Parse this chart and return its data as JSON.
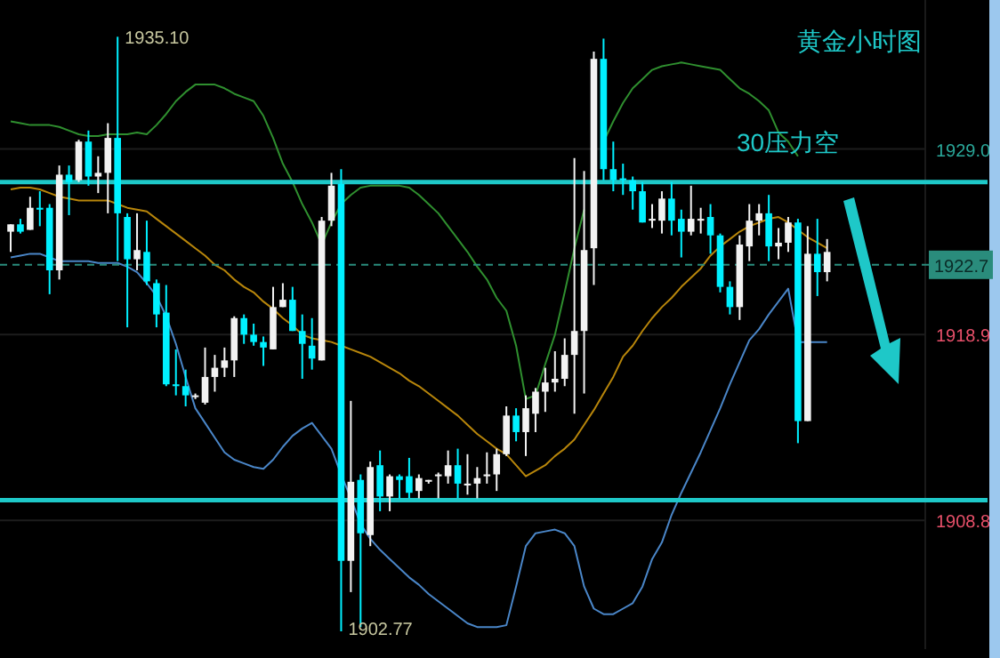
{
  "chart_data": {
    "type": "candlestick",
    "title": "黄金小时图",
    "categories": [
      null,
      null,
      null,
      null,
      null,
      null,
      null,
      null,
      null,
      null,
      null,
      null,
      null,
      null,
      null,
      null,
      null,
      null,
      null,
      null,
      null,
      null,
      null,
      null,
      null,
      null,
      null,
      null,
      null,
      null,
      null,
      null,
      null,
      null,
      null,
      null,
      null,
      null,
      null,
      null,
      null,
      null,
      null,
      null,
      null,
      null,
      null,
      null,
      null,
      null,
      null,
      null,
      null,
      null,
      null,
      null,
      null,
      null,
      null,
      null,
      null,
      null,
      null,
      null,
      null,
      null,
      null,
      null,
      null,
      null,
      null,
      null,
      null,
      null,
      null,
      null,
      null,
      null,
      null,
      null,
      null,
      null,
      null,
      null,
      null
    ],
    "ohlc": [
      [
        1924.5,
        1924.9,
        1923.4,
        1924.9
      ],
      [
        1924.9,
        1925.2,
        1924.4,
        1924.5
      ],
      [
        1924.6,
        1926.4,
        1924.6,
        1925.8
      ],
      [
        1925.8,
        1926.7,
        1924.8,
        1925.7
      ],
      [
        1925.8,
        1926.0,
        1921.1,
        1922.4
      ],
      [
        1922.4,
        1928.1,
        1921.9,
        1927.6
      ],
      [
        1927.6,
        1928.1,
        1925.4,
        1927.2
      ],
      [
        1927.3,
        1929.5,
        1927.2,
        1929.4
      ],
      [
        1929.4,
        1930.0,
        1927.0,
        1927.5
      ],
      [
        1927.5,
        1928.6,
        1926.6,
        1927.7
      ],
      [
        1927.7,
        1930.4,
        1925.5,
        1929.6
      ],
      [
        1929.6,
        1935.1,
        1922.9,
        1925.5
      ],
      [
        1925.3,
        1925.5,
        1919.3,
        1923.0
      ],
      [
        1923.0,
        1925.5,
        1922.4,
        1923.5
      ],
      [
        1923.4,
        1925.1,
        1921.6,
        1921.8
      ],
      [
        1921.7,
        1921.9,
        1919.3,
        1920.0
      ],
      [
        1920.1,
        1921.6,
        1916.1,
        1916.2
      ],
      [
        1916.2,
        1918.1,
        1915.6,
        1916.1
      ],
      [
        1916.1,
        1917.0,
        1915.0,
        1915.6
      ],
      [
        1915.6,
        1915.7,
        1915.4,
        1915.6
      ],
      [
        1915.2,
        1918.2,
        1915.1,
        1916.6
      ],
      [
        1916.6,
        1917.8,
        1915.8,
        1917.1
      ],
      [
        1917.1,
        1918.2,
        1916.6,
        1917.5
      ],
      [
        1917.5,
        1919.9,
        1916.6,
        1919.8
      ],
      [
        1919.8,
        1920.0,
        1918.4,
        1918.9
      ],
      [
        1918.9,
        1919.5,
        1918.3,
        1918.5
      ],
      [
        1918.5,
        1918.8,
        1917.2,
        1918.2
      ],
      [
        1918.1,
        1921.5,
        1918.1,
        1920.4
      ],
      [
        1920.4,
        1921.7,
        1920.4,
        1920.8
      ],
      [
        1920.8,
        1921.5,
        1919.1,
        1919.1
      ],
      [
        1919.1,
        1920.0,
        1916.5,
        1918.4
      ],
      [
        1918.3,
        1919.8,
        1917.0,
        1917.6
      ],
      [
        1917.5,
        1925.3,
        1917.5,
        1925.1
      ],
      [
        1925.1,
        1927.7,
        1924.8,
        1927.0
      ],
      [
        1927.1,
        1927.9,
        1902.77,
        1906.6
      ],
      [
        1906.6,
        1915.3,
        1904.9,
        1910.9
      ],
      [
        1911.0,
        1911.3,
        1903.0,
        1908.1
      ],
      [
        1908.0,
        1912.0,
        1907.4,
        1911.7
      ],
      [
        1911.8,
        1912.6,
        1909.3,
        1910.1
      ],
      [
        1910.1,
        1911.3,
        1909.3,
        1911.2
      ],
      [
        1911.2,
        1911.3,
        1910.0,
        1911.0
      ],
      [
        1911.2,
        1912.2,
        1910.0,
        1910.3
      ],
      [
        1910.4,
        1911.3,
        1910.0,
        1911.1
      ],
      [
        1911.0,
        1911.0,
        1910.8,
        1911.0
      ],
      [
        1911.2,
        1911.4,
        1910.0,
        1911.3
      ],
      [
        1911.2,
        1912.6,
        1910.8,
        1911.8
      ],
      [
        1911.8,
        1912.7,
        1910.0,
        1910.8
      ],
      [
        1910.7,
        1912.4,
        1910.2,
        1910.8
      ],
      [
        1910.8,
        1911.7,
        1910.0,
        1911.1
      ],
      [
        1911.2,
        1912.5,
        1910.8,
        1911.3
      ],
      [
        1911.3,
        1912.7,
        1910.4,
        1912.4
      ],
      [
        1912.4,
        1915.0,
        1912.3,
        1914.5
      ],
      [
        1914.5,
        1914.9,
        1913.1,
        1913.6
      ],
      [
        1913.6,
        1915.6,
        1912.3,
        1914.9
      ],
      [
        1914.6,
        1916.0,
        1913.6,
        1915.8
      ],
      [
        1915.8,
        1917.1,
        1914.7,
        1916.3
      ],
      [
        1916.3,
        1918.0,
        1915.8,
        1916.5
      ],
      [
        1916.5,
        1918.7,
        1916.1,
        1917.8
      ],
      [
        1917.8,
        1928.5,
        1914.6,
        1919.1
      ],
      [
        1919.1,
        1927.8,
        1915.7,
        1923.5
      ],
      [
        1923.6,
        1934.3,
        1921.6,
        1933.9
      ],
      [
        1933.9,
        1935.0,
        1927.3,
        1927.9
      ],
      [
        1927.9,
        1929.4,
        1926.7,
        1927.3
      ],
      [
        1927.4,
        1928.2,
        1926.5,
        1927.3
      ],
      [
        1927.3,
        1927.5,
        1925.7,
        1926.7
      ],
      [
        1926.7,
        1927.2,
        1925.0,
        1925.0
      ],
      [
        1925.1,
        1926.0,
        1924.7,
        1925.2
      ],
      [
        1925.1,
        1926.7,
        1924.4,
        1926.3
      ],
      [
        1926.3,
        1927.2,
        1924.3,
        1925.1
      ],
      [
        1925.2,
        1925.7,
        1923.1,
        1924.5
      ],
      [
        1924.5,
        1927.0,
        1924.3,
        1925.2
      ],
      [
        1925.1,
        1925.8,
        1924.4,
        1925.2
      ],
      [
        1925.3,
        1926.0,
        1923.3,
        1924.3
      ],
      [
        1924.3,
        1924.4,
        1921.2,
        1921.5
      ],
      [
        1921.5,
        1921.8,
        1920.0,
        1920.4
      ],
      [
        1920.4,
        1924.3,
        1919.7,
        1923.8
      ],
      [
        1923.7,
        1926.0,
        1922.9,
        1925.1
      ],
      [
        1925.1,
        1926.0,
        1924.3,
        1925.5
      ],
      [
        1925.5,
        1926.5,
        1922.9,
        1923.7
      ],
      [
        1923.7,
        1924.7,
        1923.0,
        1923.9
      ],
      [
        1923.9,
        1925.3,
        1923.4,
        1925.0
      ],
      [
        1925.0,
        1925.2,
        1913.0,
        1914.2
      ],
      [
        1914.2,
        1924.8,
        1914.2,
        1923.3
      ],
      [
        1923.3,
        1925.2,
        1921.0,
        1922.3
      ],
      [
        1922.3,
        1924.1,
        1921.8,
        1923.4
      ]
    ],
    "series": [
      {
        "type": "line",
        "color": "#2f8f2f",
        "values": [
          1930.5,
          1930.4,
          1930.3,
          1930.3,
          1930.3,
          1930.2,
          1930.0,
          1929.8,
          1929.7,
          1929.7,
          1929.8,
          1929.8,
          1929.8,
          1929.9,
          1929.8,
          1930.3,
          1930.9,
          1931.6,
          1932.1,
          1932.5,
          1932.5,
          1932.5,
          1932.3,
          1932.0,
          1931.8,
          1931.6,
          1930.8,
          1929.6,
          1928.2,
          1927.2,
          1926.0,
          1925.0,
          1923.8,
          1925.0,
          1926.0,
          1926.5,
          1926.9,
          1927.0,
          1927.0,
          1927.0,
          1927.0,
          1926.9,
          1926.5,
          1926.0,
          1925.5,
          1924.8,
          1924.1,
          1923.4,
          1922.6,
          1921.9,
          1920.9,
          1920.2,
          1918.3,
          1915.4,
          1915.6,
          1917.3,
          1918.9,
          1921.2,
          1923.6,
          1925.7,
          null,
          1929.4,
          1930.5,
          1931.5,
          1932.3,
          1932.8,
          1933.3,
          1933.5,
          1933.6,
          1933.7,
          1933.6,
          1933.5,
          1933.4,
          1933.3,
          1932.8,
          1932.3,
          1932.0,
          1931.6,
          1931.1,
          1929.9,
          1929.4,
          1928.6,
          null,
          null,
          null
        ]
      },
      {
        "type": "line",
        "color": "#b8860b",
        "values": [
          1926.8,
          1926.9,
          1926.9,
          1926.8,
          1926.6,
          1926.4,
          1926.3,
          1926.2,
          1926.2,
          1926.2,
          1926.2,
          1926.0,
          1925.8,
          1925.7,
          1925.6,
          1925.2,
          1924.8,
          1924.4,
          1924.0,
          1923.6,
          1923.2,
          1922.7,
          1922.4,
          1921.9,
          1921.5,
          1921.2,
          1920.7,
          1920.3,
          1919.8,
          1919.4,
          1918.9,
          1918.7,
          1918.6,
          1918.5,
          1918.3,
          1918.1,
          1917.9,
          1917.7,
          1917.4,
          1917.1,
          1916.8,
          1916.4,
          1916.1,
          1915.7,
          1915.3,
          1914.9,
          1914.5,
          1914.0,
          1913.5,
          1913.1,
          1912.7,
          1912.4,
          1911.8,
          1911.2,
          1911.5,
          1911.8,
          1912.3,
          1912.7,
          1913.2,
          1914.0,
          1914.8,
          1915.7,
          1916.6,
          1917.7,
          1918.3,
          1919.1,
          1919.8,
          1920.4,
          1920.9,
          1921.5,
          1922.0,
          1922.5,
          1923.2,
          1923.7,
          1924.1,
          1924.5,
          1924.8,
          1925.0,
          1925.2,
          1925.3,
          1925.0,
          1924.6,
          1924.2,
          1923.9,
          1923.6
        ]
      },
      {
        "type": "line",
        "color": "#4a86c8",
        "values": [
          1923.1,
          1923.2,
          1923.3,
          1923.3,
          1923.1,
          1922.9,
          1922.9,
          1922.9,
          1922.9,
          1922.8,
          1922.8,
          1922.8,
          1922.6,
          1922.3,
          1921.7,
          1921.0,
          1919.9,
          1918.4,
          1916.6,
          1914.9,
          1914.1,
          1913.3,
          1912.5,
          1912.1,
          1911.9,
          1911.7,
          1911.6,
          1912.1,
          1912.8,
          1913.4,
          1913.8,
          1914.1,
          1913.4,
          1912.7,
          1911.3,
          1910.0,
          1908.6,
          1907.8,
          1907.2,
          1906.7,
          1906.2,
          1905.7,
          1905.3,
          1904.8,
          1904.4,
          1904.0,
          1903.6,
          1903.2,
          1903.0,
          1903.0,
          1903.0,
          1903.1,
          1905.2,
          1907.4,
          1908.1,
          1908.2,
          1908.3,
          1908.1,
          1907.4,
          1905.2,
          1904.0,
          1903.7,
          1903.7,
          1904.0,
          1904.3,
          1905.2,
          1906.7,
          1907.6,
          1909.1,
          1910.3,
          1911.4,
          1912.5,
          1913.7,
          1914.9,
          1916.2,
          1917.4,
          1918.6,
          1919.2,
          1920.0,
          1920.7,
          1921.4,
          1918.5,
          1918.5,
          1918.5,
          1918.5
        ]
      }
    ],
    "ylim": [
      1901.8,
      1937.1
    ],
    "yticks": [
      {
        "value": 1929.0,
        "label": "1929.0"
      },
      {
        "value": 1918.9,
        "label": "1918.9"
      },
      {
        "value": 1908.8,
        "label": "1908.8"
      }
    ],
    "ref_lines": [
      {
        "axis": "y",
        "value": 1922.7,
        "label": "1922.7",
        "color": "#2a8c7c",
        "line_style": "dashed"
      },
      {
        "axis": "y",
        "value": 1927.2,
        "color": "#1ec8c8",
        "line_style": "solid"
      },
      {
        "axis": "y",
        "value": 1909.9,
        "color": "#1ec8c8",
        "line_style": "solid"
      }
    ],
    "annotations": [
      "30压力空",
      "1935.10",
      "1902.77"
    ],
    "tick_labels": "y",
    "grid": "y"
  }
}
